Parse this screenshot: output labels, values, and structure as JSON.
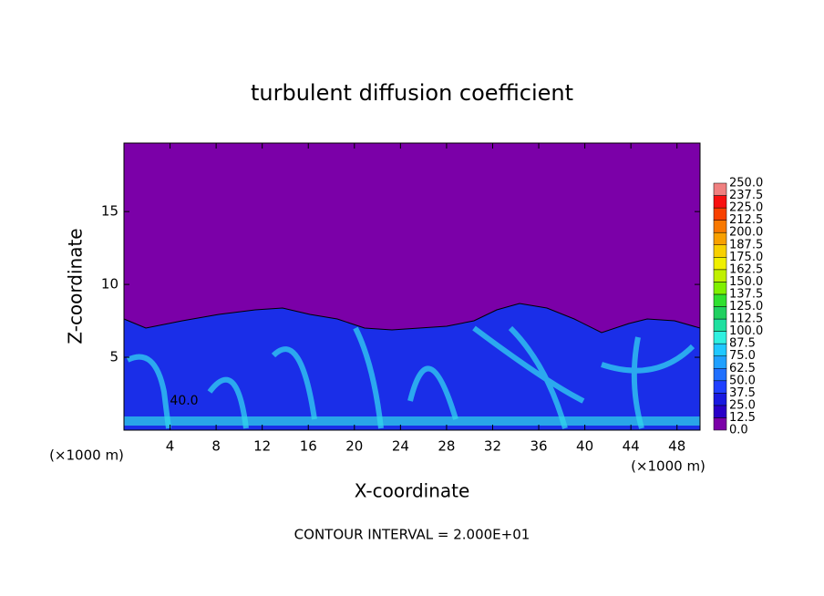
{
  "chart_data": {
    "type": "contour",
    "title": "turbulent diffusion coefficient",
    "x_label": "X-coordinate",
    "y_label": "Z-coordinate",
    "unit_labels": [
      "(×1000 m)",
      "(×1000 m)"
    ],
    "footer": "CONTOUR INTERVAL = 2.000E+01",
    "annotations": [
      "40.0"
    ],
    "xlim": [
      0,
      50
    ],
    "xticks": [
      4,
      8,
      12,
      16,
      20,
      24,
      28,
      32,
      36,
      40,
      44,
      48
    ],
    "ylim": [
      0,
      19.7
    ],
    "yticks": [
      5,
      10,
      15
    ],
    "levels": [
      {
        "value": 0,
        "label": "0.0"
      },
      {
        "value": 12.5,
        "label": "12.5"
      },
      {
        "value": 25,
        "label": "25.0"
      },
      {
        "value": 37.5,
        "label": "37.5"
      },
      {
        "value": 50,
        "label": "50.0"
      },
      {
        "value": 62.5,
        "label": "62.5"
      },
      {
        "value": 75,
        "label": "75.0"
      },
      {
        "value": 87.5,
        "label": "87.5"
      },
      {
        "value": 100,
        "label": "100.0"
      },
      {
        "value": 112.5,
        "label": "112.5"
      },
      {
        "value": 125,
        "label": "125.0"
      },
      {
        "value": 137.5,
        "label": "137.5"
      },
      {
        "value": 150,
        "label": "150.0"
      },
      {
        "value": 162.5,
        "label": "162.5"
      },
      {
        "value": 175,
        "label": "175.0"
      },
      {
        "value": 187.5,
        "label": "187.5"
      },
      {
        "value": 200,
        "label": "200.0"
      },
      {
        "value": 212.5,
        "label": "212.5"
      },
      {
        "value": 225,
        "label": "225.0"
      },
      {
        "value": 237.5,
        "label": "237.5"
      },
      {
        "value": 250,
        "label": "250.0"
      }
    ],
    "colors": [
      "#7b00a8",
      "#2a00c8",
      "#1a1ae0",
      "#2040ff",
      "#2070ff",
      "#20a0ff",
      "#20c8ff",
      "#30f0e0",
      "#20e0a0",
      "#20d060",
      "#30e030",
      "#80f000",
      "#c0f000",
      "#f0f000",
      "#f8d000",
      "#f8a000",
      "#f87800",
      "#f84000",
      "#f81010",
      "#f08080"
    ]
  }
}
